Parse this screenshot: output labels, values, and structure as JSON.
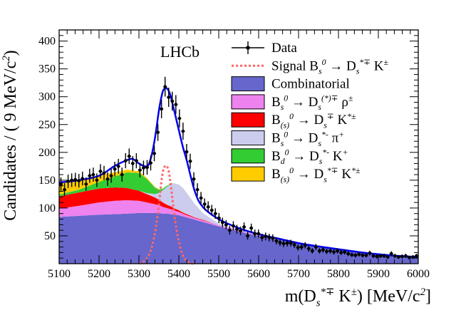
{
  "chart_data": {
    "type": "area",
    "experiment_label": "LHCb",
    "xlabel": "m(D_s^{*∓} K^±) [MeV/c^2]",
    "ylabel": "Candidates / ( 9 MeV/c^2)",
    "xlim": [
      5100,
      6000
    ],
    "ylim": [
      0,
      420
    ],
    "x_ticks": [
      "5100",
      "5200",
      "5300",
      "5400",
      "5500",
      "5600",
      "5700",
      "5800",
      "5900",
      "6000"
    ],
    "y_ticks": [
      "50",
      "100",
      "150",
      "200",
      "250",
      "300",
      "350",
      "400"
    ],
    "colors": {
      "combinatorial": "#6666cc",
      "rho": "#ee82ee",
      "kstar": "#ff0000",
      "pi": "#ccccee",
      "bd": "#33cc33",
      "bs_kstar": "#ffcc00",
      "total": "#0000ee",
      "signal": "#ff6666",
      "data": "#000000"
    },
    "legend": [
      {
        "key": "data",
        "label": "Data"
      },
      {
        "key": "signal",
        "label": "Signal B_s^0 → D_s^{*∓} K^±"
      },
      {
        "key": "combinatorial",
        "label": "Combinatorial"
      },
      {
        "key": "rho",
        "label": "B_s^0 → D_s^{(*)∓} ρ^±"
      },
      {
        "key": "kstar",
        "label": "B_{(s)}^0 → D_s^∓ K^{*±}"
      },
      {
        "key": "pi",
        "label": "B_s^0 → D_s^{*-} π^+"
      },
      {
        "key": "bd",
        "label": "B_d^0 → D_s^{*-} K^+"
      },
      {
        "key": "bs_kstar",
        "label": "B_{(s)}^0 → D_s^{*∓} K^{*±}"
      }
    ],
    "components_x": [
      5100,
      5150,
      5200,
      5240,
      5270,
      5300,
      5320,
      5340,
      5350,
      5360,
      5370,
      5380,
      5390,
      5400,
      5410,
      5420,
      5440,
      5460,
      5500,
      5550,
      5600,
      5650,
      5700,
      5750,
      5800,
      5850,
      5900,
      5950,
      6000
    ],
    "series": [
      {
        "name": "Combinatorial",
        "key": "combinatorial",
        "values": [
          84,
          86,
          88,
          89,
          90,
          91,
          91,
          91,
          91,
          90,
          90,
          89,
          88,
          87,
          85,
          83,
          79,
          75,
          67,
          58,
          50,
          43,
          36,
          30,
          25,
          21,
          17,
          14,
          12
        ]
      },
      {
        "name": "B_s^0 → D_s^{(*)∓} ρ^±",
        "key": "rho",
        "values": [
          15,
          18,
          22,
          24,
          24,
          22,
          19,
          16,
          14,
          12,
          10,
          9,
          7,
          6,
          5,
          4,
          3,
          3,
          2,
          2,
          1,
          1,
          1,
          0,
          0,
          0,
          0,
          0,
          0
        ]
      },
      {
        "name": "B_{(s)}^0 → D_s^∓ K^{*±}",
        "key": "kstar",
        "values": [
          22,
          24,
          25,
          24,
          22,
          18,
          15,
          12,
          10,
          8,
          6,
          5,
          4,
          3,
          2,
          2,
          1,
          1,
          0,
          0,
          0,
          0,
          0,
          0,
          0,
          0,
          0,
          0,
          0
        ]
      },
      {
        "name": "B_s^0 → D_s^{*-} π^+",
        "key": "pi",
        "values": [
          0,
          0,
          0,
          0,
          0,
          0,
          2,
          6,
          12,
          22,
          32,
          40,
          45,
          46,
          44,
          38,
          24,
          12,
          3,
          1,
          0,
          0,
          0,
          0,
          0,
          0,
          0,
          0,
          0
        ]
      },
      {
        "name": "B_d^0 → D_s^{*-} K^+",
        "key": "bd",
        "values": [
          3,
          5,
          12,
          20,
          28,
          32,
          25,
          12,
          6,
          3,
          2,
          1,
          0,
          0,
          0,
          0,
          0,
          0,
          0,
          0,
          0,
          0,
          0,
          0,
          0,
          0,
          0,
          0,
          0
        ]
      },
      {
        "name": "B_{(s)}^0 → D_s^{*∓} K^{*±}",
        "key": "bs_kstar",
        "values": [
          22,
          17,
          12,
          7,
          5,
          3,
          2,
          1,
          1,
          0,
          0,
          0,
          0,
          0,
          0,
          0,
          0,
          0,
          0,
          0,
          0,
          0,
          0,
          0,
          0,
          0,
          0,
          0,
          0
        ]
      }
    ],
    "signal": {
      "x": [
        5300,
        5310,
        5320,
        5330,
        5340,
        5350,
        5355,
        5360,
        5365,
        5370,
        5375,
        5380,
        5385,
        5390,
        5400,
        5410,
        5420,
        5430,
        5440
      ],
      "y": [
        0,
        3,
        10,
        25,
        55,
        105,
        140,
        165,
        175,
        175,
        165,
        140,
        110,
        80,
        40,
        15,
        5,
        1,
        0
      ]
    },
    "total_fit": {
      "x": [
        5100,
        5150,
        5200,
        5240,
        5270,
        5285,
        5300,
        5320,
        5330,
        5340,
        5350,
        5355,
        5360,
        5365,
        5370,
        5375,
        5380,
        5385,
        5390,
        5400,
        5410,
        5420,
        5440,
        5460,
        5500,
        5550,
        5600,
        5650,
        5700,
        5750,
        5800,
        5850,
        5900,
        5950,
        6000
      ],
      "y": [
        146,
        150,
        158,
        176,
        186,
        188,
        180,
        175,
        190,
        225,
        275,
        295,
        310,
        315,
        315,
        310,
        300,
        285,
        270,
        240,
        210,
        185,
        130,
        102,
        80,
        64,
        53,
        45,
        37,
        31,
        26,
        21,
        17,
        14,
        12
      ]
    },
    "data_points": {
      "x": [
        5104.5,
        5113.5,
        5122.5,
        5131.5,
        5140.5,
        5149.5,
        5158.5,
        5167.5,
        5176.5,
        5185.5,
        5194.5,
        5203.5,
        5212.5,
        5221.5,
        5230.5,
        5239.5,
        5248.5,
        5257.5,
        5266.5,
        5275.5,
        5284.5,
        5293.5,
        5302.5,
        5311.5,
        5320.5,
        5329.5,
        5338.5,
        5347.5,
        5356.5,
        5365.5,
        5374.5,
        5383.5,
        5392.5,
        5401.5,
        5410.5,
        5419.5,
        5428.5,
        5437.5,
        5446.5,
        5455.5,
        5464.5,
        5473.5,
        5482.5,
        5491.5,
        5500.5,
        5509.5,
        5518.5,
        5527.5,
        5536.5,
        5545.5,
        5554.5,
        5563.5,
        5572.5,
        5581.5,
        5590.5,
        5599.5,
        5608.5,
        5617.5,
        5626.5,
        5635.5,
        5644.5,
        5653.5,
        5662.5,
        5671.5,
        5680.5,
        5689.5,
        5698.5,
        5707.5,
        5716.5,
        5725.5,
        5734.5,
        5743.5,
        5752.5,
        5761.5,
        5770.5,
        5779.5,
        5788.5,
        5797.5,
        5806.5,
        5815.5,
        5824.5,
        5833.5,
        5842.5,
        5851.5,
        5860.5,
        5869.5,
        5878.5,
        5887.5,
        5896.5,
        5905.5,
        5914.5,
        5923.5,
        5932.5,
        5941.5,
        5950.5,
        5959.5,
        5968.5,
        5977.5,
        5986.5,
        5995.5
      ],
      "y": [
        143,
        133,
        148,
        150,
        151,
        149,
        153,
        143,
        158,
        160,
        150,
        166,
        163,
        152,
        158,
        170,
        175,
        160,
        185,
        193,
        180,
        185,
        168,
        172,
        173,
        181,
        198,
        236,
        278,
        318,
        299,
        292,
        286,
        261,
        238,
        201,
        184,
        152,
        133,
        118,
        107,
        102,
        96,
        90,
        82,
        74,
        70,
        60,
        68,
        62,
        59,
        66,
        50,
        64,
        54,
        54,
        47,
        49,
        47,
        46,
        41,
        38,
        36,
        37,
        37,
        34,
        29,
        30,
        33,
        27,
        23,
        30,
        23,
        25,
        22,
        23,
        21,
        23,
        20,
        21,
        18,
        16,
        15,
        17,
        15,
        15,
        19,
        14,
        13,
        14,
        14,
        12,
        18,
        14,
        12,
        13,
        14,
        11,
        12,
        14
      ]
    }
  }
}
